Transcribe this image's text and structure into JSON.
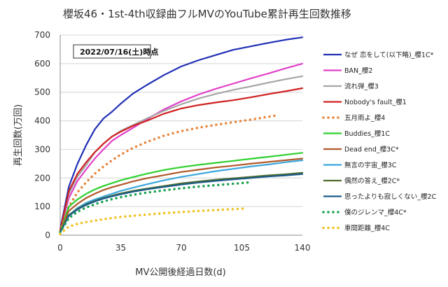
{
  "chart_data": {
    "type": "line",
    "title": "櫻坂46・1st-4th収録曲フルMVのYouTube累計再生回数推移",
    "annotation": "2022/07/16(土)時点",
    "xlabel": "MV公開後経過日数(d)",
    "ylabel": "再生回数(万回)",
    "xlim": [
      0,
      140
    ],
    "ylim": [
      0,
      700
    ],
    "xticks": [
      0,
      35,
      70,
      105,
      140
    ],
    "yticks": [
      0,
      100,
      200,
      300,
      400,
      500,
      600,
      700
    ],
    "grid": "horizontal",
    "legend_position": "right",
    "series": [
      {
        "name": "なぜ 恋をして(以下略)_櫻1C*",
        "color": "#1f2fb5",
        "style": "solid",
        "x": [
          0,
          5,
          10,
          15,
          20,
          25,
          30,
          35,
          42,
          50,
          60,
          70,
          80,
          90,
          100,
          110,
          120,
          130,
          140
        ],
        "y": [
          20,
          170,
          250,
          315,
          370,
          408,
          432,
          460,
          495,
          525,
          560,
          590,
          612,
          630,
          648,
          660,
          672,
          683,
          692
        ]
      },
      {
        "name": "BAN_櫻2",
        "color": "#e040c8",
        "style": "solid",
        "x": [
          0,
          5,
          10,
          15,
          20,
          25,
          30,
          35,
          42,
          50,
          60,
          70,
          80,
          90,
          100,
          110,
          120,
          130,
          140
        ],
        "y": [
          15,
          130,
          190,
          230,
          268,
          300,
          330,
          350,
          375,
          405,
          440,
          468,
          492,
          512,
          530,
          548,
          565,
          583,
          600
        ]
      },
      {
        "name": "流れ弾_櫻3",
        "color": "#a6a6a6",
        "style": "solid",
        "x": [
          0,
          5,
          10,
          15,
          20,
          25,
          30,
          35,
          42,
          50,
          60,
          70,
          80,
          90,
          100,
          110,
          120,
          130,
          140
        ],
        "y": [
          15,
          145,
          205,
          245,
          290,
          320,
          345,
          365,
          385,
          408,
          435,
          458,
          478,
          494,
          508,
          520,
          533,
          545,
          556
        ]
      },
      {
        "name": "Nobody's fault_櫻1",
        "color": "#d02020",
        "style": "solid",
        "x": [
          0,
          5,
          10,
          15,
          20,
          25,
          30,
          35,
          42,
          50,
          60,
          70,
          80,
          90,
          100,
          110,
          120,
          130,
          140
        ],
        "y": [
          15,
          155,
          215,
          255,
          290,
          320,
          345,
          362,
          382,
          400,
          425,
          443,
          455,
          464,
          472,
          482,
          493,
          503,
          514
        ]
      },
      {
        "name": "五月雨よ_櫻4",
        "color": "#e8843a",
        "style": "dotted",
        "x": [
          0,
          5,
          10,
          15,
          20,
          25,
          30,
          35,
          42,
          50,
          60,
          70,
          80,
          90,
          100,
          110,
          120,
          126
        ],
        "y": [
          15,
          100,
          150,
          185,
          215,
          240,
          262,
          282,
          305,
          326,
          348,
          364,
          376,
          386,
          395,
          404,
          414,
          420
        ]
      },
      {
        "name": "Buddies_櫻1C",
        "color": "#2fd02f",
        "style": "solid",
        "x": [
          0,
          5,
          10,
          15,
          20,
          25,
          30,
          35,
          42,
          50,
          60,
          70,
          80,
          90,
          100,
          110,
          120,
          130,
          140
        ],
        "y": [
          10,
          100,
          125,
          145,
          160,
          172,
          182,
          192,
          203,
          215,
          228,
          238,
          246,
          253,
          260,
          267,
          274,
          281,
          288
        ]
      },
      {
        "name": "Dead end_櫻3C*",
        "color": "#b0582a",
        "style": "solid",
        "x": [
          0,
          5,
          10,
          15,
          20,
          25,
          30,
          35,
          42,
          50,
          60,
          70,
          80,
          90,
          100,
          110,
          120,
          130,
          140
        ],
        "y": [
          10,
          85,
          110,
          130,
          145,
          158,
          168,
          176,
          188,
          199,
          210,
          221,
          229,
          237,
          243,
          250,
          256,
          262,
          268
        ]
      },
      {
        "name": "無言の宇宙_櫻3C",
        "color": "#3aa6dc",
        "style": "solid",
        "x": [
          0,
          5,
          10,
          15,
          20,
          25,
          30,
          35,
          42,
          50,
          60,
          70,
          80,
          90,
          100,
          110,
          120,
          130,
          140
        ],
        "y": [
          10,
          70,
          95,
          113,
          125,
          135,
          145,
          155,
          166,
          178,
          192,
          204,
          214,
          224,
          232,
          240,
          247,
          255,
          262
        ]
      },
      {
        "name": "偶然の答え_櫻2C*",
        "color": "#4e6b2b",
        "style": "solid",
        "x": [
          0,
          5,
          10,
          15,
          20,
          25,
          30,
          35,
          42,
          50,
          60,
          70,
          80,
          90,
          100,
          110,
          120,
          130,
          140
        ],
        "y": [
          10,
          70,
          92,
          108,
          120,
          130,
          138,
          146,
          155,
          163,
          172,
          181,
          188,
          194,
          199,
          204,
          209,
          213,
          218
        ]
      },
      {
        "name": "思ったよりも寂しくない_櫻2C",
        "color": "#1a5a8a",
        "style": "solid",
        "x": [
          0,
          5,
          10,
          15,
          20,
          25,
          30,
          35,
          42,
          50,
          60,
          70,
          80,
          90,
          100,
          110,
          120,
          130,
          140
        ],
        "y": [
          10,
          68,
          90,
          106,
          118,
          128,
          136,
          143,
          152,
          160,
          169,
          177,
          184,
          190,
          195,
          200,
          205,
          209,
          214
        ]
      },
      {
        "name": "僕のジレンマ_櫻4C*",
        "color": "#1aa050",
        "style": "dotted",
        "x": [
          0,
          5,
          10,
          15,
          20,
          25,
          30,
          35,
          42,
          50,
          60,
          70,
          80,
          90,
          100,
          110
        ],
        "y": [
          10,
          60,
          82,
          97,
          108,
          118,
          126,
          133,
          141,
          149,
          157,
          164,
          170,
          175,
          180,
          185
        ]
      },
      {
        "name": "車間距離_櫻4C",
        "color": "#f0c020",
        "style": "dotted",
        "x": [
          0,
          5,
          10,
          15,
          20,
          25,
          30,
          35,
          42,
          50,
          60,
          70,
          80,
          90,
          100,
          106
        ],
        "y": [
          5,
          30,
          40,
          46,
          51,
          56,
          60,
          64,
          68,
          72,
          77,
          81,
          85,
          88,
          91,
          93
        ]
      }
    ]
  }
}
